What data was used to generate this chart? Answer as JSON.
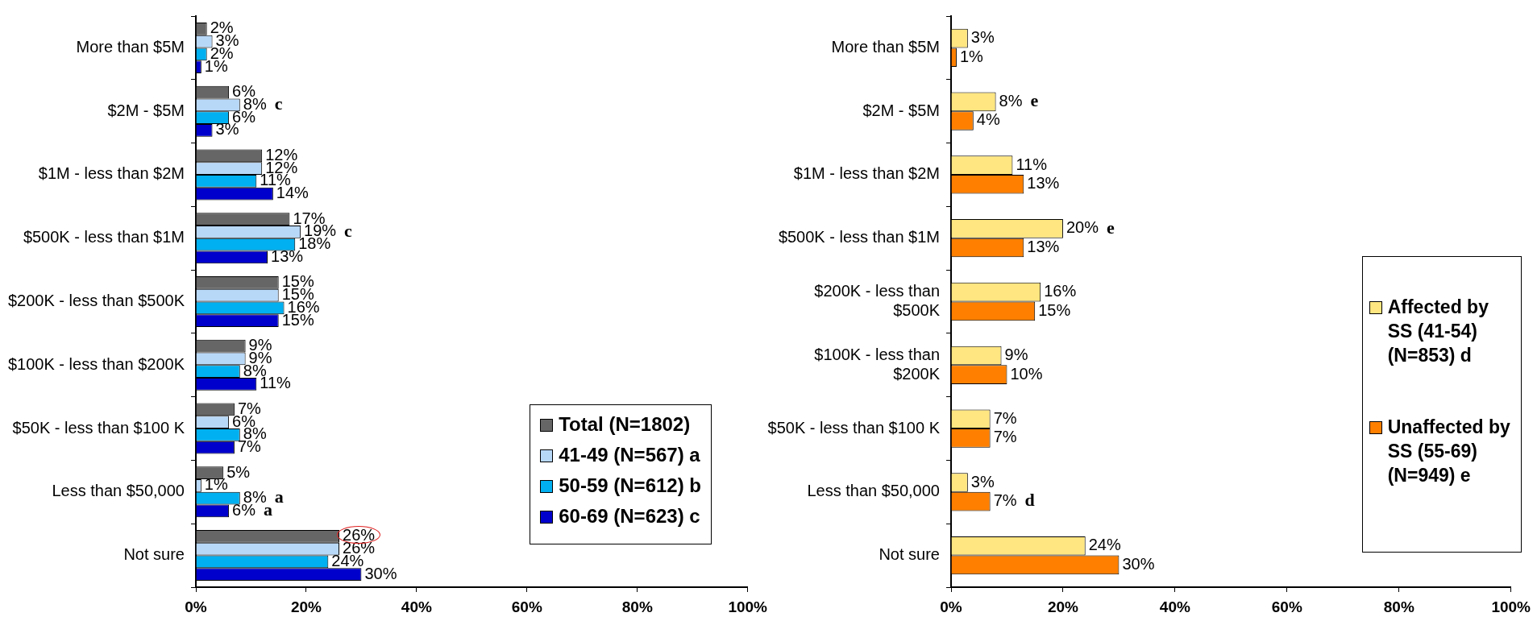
{
  "chart_data": [
    {
      "type": "bar",
      "orientation": "horizontal",
      "grid": false,
      "legend": "bottom right",
      "categories": [
        "More than $5M",
        "$2M - $5M",
        "$1M - less than $2M",
        "$500K - less than $1M",
        "$200K - less than $500K",
        "$100K - less than $200K",
        "$50K - less than $100 K",
        "Less than $50,000",
        "Not sure"
      ],
      "xlim": [
        0,
        100
      ],
      "xticks": [
        {
          "value": 0,
          "label": "0%"
        },
        {
          "value": 20,
          "label": "20%"
        },
        {
          "value": 40,
          "label": "40%"
        },
        {
          "value": 60,
          "label": "60%"
        },
        {
          "value": 80,
          "label": "80%"
        },
        {
          "value": 100,
          "label": "100%"
        }
      ],
      "series": [
        {
          "name": "Total (N=1802)",
          "color": "#666666",
          "values": [
            2,
            6,
            12,
            17,
            15,
            9,
            7,
            5,
            26
          ],
          "value_labels": [
            "2%",
            "6%",
            "12%",
            "17%",
            "15%",
            "9%",
            "7%",
            "5%",
            "26%"
          ]
        },
        {
          "name": "41-49 (N=567) a",
          "color": "#b8d8f8",
          "values": [
            3,
            8,
            12,
            19,
            15,
            9,
            6,
            1,
            26
          ],
          "value_labels": [
            "3%",
            "8%",
            "12%",
            "19%",
            "15%",
            "9%",
            "6%",
            "1%",
            "26%"
          ]
        },
        {
          "name": "50-59 (N=612) b",
          "color": "#00b0f0",
          "values": [
            2,
            6,
            11,
            18,
            16,
            8,
            8,
            8,
            24
          ],
          "value_labels": [
            "2%",
            "6%",
            "11%",
            "18%",
            "16%",
            "8%",
            "8%",
            "8%",
            "24%"
          ]
        },
        {
          "name": "60-69 (N=623) c",
          "color": "#0000cc",
          "values": [
            1,
            3,
            14,
            13,
            15,
            11,
            7,
            6,
            30
          ],
          "value_labels": [
            "1%",
            "3%",
            "14%",
            "13%",
            "15%",
            "11%",
            "7%",
            "6%",
            "30%"
          ]
        }
      ],
      "annotations": [
        {
          "text": "c",
          "x": 8,
          "y": "$2M - $5M"
        },
        {
          "text": "c",
          "x": 19,
          "y": "$500K - less than $1M"
        },
        {
          "text": "a",
          "x": 8,
          "y": "Less than $50,000"
        },
        {
          "text": "a",
          "x": 6,
          "y": "Less than $50,000"
        }
      ]
    },
    {
      "type": "bar",
      "orientation": "horizontal",
      "grid": false,
      "legend": "right",
      "categories": [
        "More than $5M",
        "$2M - $5M",
        "$1M - less than $2M",
        "$500K - less than $1M",
        "$200K - less than $500K",
        "$100K - less than $200K",
        "$50K - less than $100 K",
        "Less than $50,000",
        "Not sure"
      ],
      "xlim": [
        0,
        100
      ],
      "xticks": [
        {
          "value": 0,
          "label": "0%"
        },
        {
          "value": 20,
          "label": "20%"
        },
        {
          "value": 40,
          "label": "40%"
        },
        {
          "value": 60,
          "label": "60%"
        },
        {
          "value": 80,
          "label": "80%"
        },
        {
          "value": 100,
          "label": "100%"
        }
      ],
      "series": [
        {
          "name": "Affected by SS (41-54) (N=853) d",
          "color": "#ffe680",
          "values": [
            3,
            8,
            11,
            20,
            16,
            9,
            7,
            3,
            24
          ],
          "value_labels": [
            "3%",
            "8%",
            "11%",
            "20%",
            "16%",
            "9%",
            "7%",
            "3%",
            "24%"
          ]
        },
        {
          "name": "Unaffected by SS (55-69) (N=949) e",
          "color": "#ff8000",
          "values": [
            1,
            4,
            13,
            13,
            15,
            10,
            7,
            7,
            30
          ],
          "value_labels": [
            "1%",
            "4%",
            "13%",
            "13%",
            "15%",
            "10%",
            "7%",
            "7%",
            "30%"
          ]
        }
      ],
      "annotations": [
        {
          "text": "e",
          "x": 8,
          "y": "$2M - $5M"
        },
        {
          "text": "e",
          "x": 20,
          "y": "$500K - less than $1M"
        },
        {
          "text": "d",
          "x": 7,
          "y": "Less than $50,000"
        }
      ]
    }
  ]
}
